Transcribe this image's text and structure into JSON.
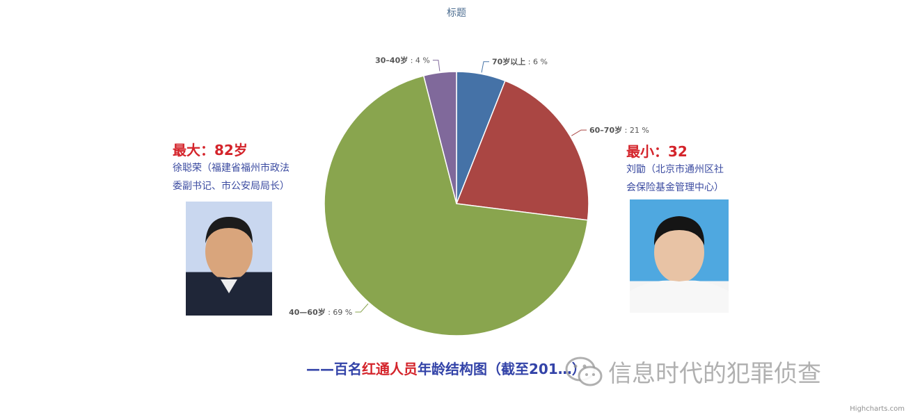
{
  "chart_data": {
    "type": "pie",
    "title": "标题",
    "slices": [
      {
        "label": "70岁以上",
        "value": 6,
        "color": "#4572a7"
      },
      {
        "label": "60–70岁",
        "value": 21,
        "color": "#aa4643"
      },
      {
        "label": "40—60岁",
        "value": 69,
        "color": "#89a54e"
      },
      {
        "label": "30–40岁",
        "value": 4,
        "color": "#80699b"
      }
    ],
    "label_suffix": " : ",
    "unit": " %"
  },
  "callouts": {
    "oldest": {
      "head": "最大：82岁",
      "desc": "徐聪荣（福建省福州市政法\n委副书记、市公安局局长）"
    },
    "youngest": {
      "head": "最小：32",
      "desc": "刘勖（北京市通州区社\n会保险基金管理中心）"
    }
  },
  "caption": {
    "prefix": "——百名",
    "highlight": "红通人员",
    "suffix": "年龄结构图（截至201…）"
  },
  "watermark": {
    "text": "信息时代的犯罪侦查",
    "icon": "wechat-icon"
  },
  "credits": "Highcharts.com"
}
